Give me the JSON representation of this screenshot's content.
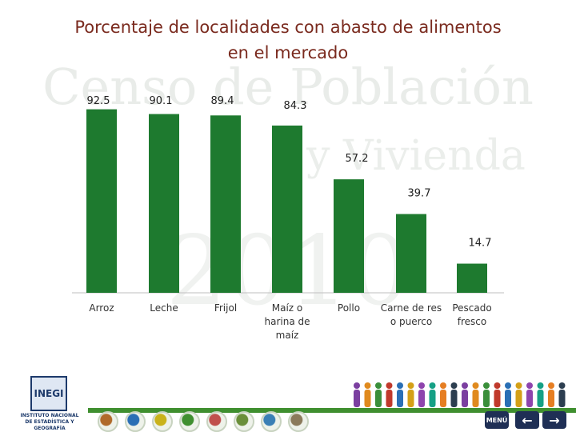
{
  "slide": {
    "title_line1": "Porcentaje de localidades con abasto de alimentos",
    "title_line2": "en el mercado",
    "watermark_line1": "Censo de Población",
    "watermark_line2": "y Vivienda",
    "watermark_year": "2010"
  },
  "colors": {
    "bar": "#1e7a2f",
    "title": "#7a2a1e",
    "footer_bar": "#3f8f2f",
    "nav_button": "#1f2f55"
  },
  "chart_data": {
    "type": "bar",
    "title": "Porcentaje de localidades con abasto de alimentos en el mercado",
    "categories": [
      [
        "Arroz"
      ],
      [
        "Leche"
      ],
      [
        "Frijol"
      ],
      [
        "Maíz  o",
        "harina de",
        "maíz"
      ],
      [
        "Pollo"
      ],
      [
        "Carne de res",
        "o puerco"
      ],
      [
        "Pescado",
        "fresco"
      ]
    ],
    "values": [
      92.5,
      90.1,
      89.4,
      84.3,
      57.2,
      39.7,
      14.7
    ],
    "value_labels": [
      "92.5",
      "90.1",
      "89.4",
      "84.3",
      "57.2",
      "39.7",
      "14.7"
    ],
    "ylim": [
      0,
      100
    ],
    "grid": false,
    "legend": "none"
  },
  "footer": {
    "logo_text": "INEGI",
    "logo_caption_line1": "INSTITUTO NACIONAL",
    "logo_caption_line2": "DE ESTADÍSTICA Y GEOGRAFÍA",
    "nav_icons": [
      "people-icon",
      "world-icon",
      "people-icon",
      "people-icon",
      "house-icon",
      "hands-icon",
      "map-icon",
      "document-icon"
    ],
    "menu_label": "MENÚ",
    "prev_symbol": "←",
    "next_symbol": "→"
  }
}
